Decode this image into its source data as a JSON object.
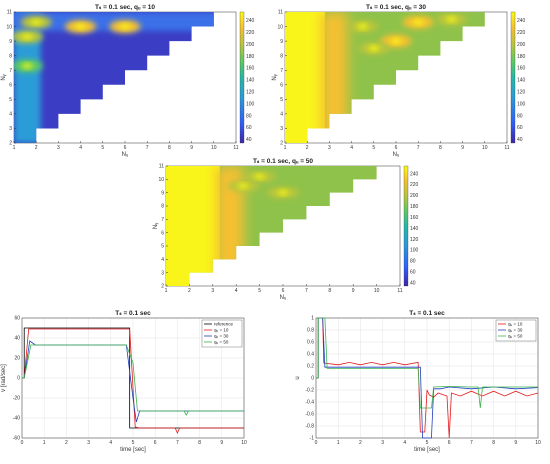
{
  "chart_data": [
    {
      "type": "heatmap",
      "title": "Tₛ = 0.1 sec, qᵤ = 10",
      "xlabel": "Nᵤ",
      "ylabel": "Nᵧ",
      "xticks": [
        "1",
        "2",
        "3",
        "4",
        "5",
        "6",
        "7",
        "8",
        "9",
        "10",
        "11"
      ],
      "yticks": [
        "2",
        "3",
        "4",
        "5",
        "6",
        "7",
        "8",
        "9",
        "10",
        "11"
      ],
      "colorbar_ticks": [
        "40",
        "60",
        "80",
        "100",
        "120",
        "140",
        "160",
        "180",
        "200",
        "220",
        "240"
      ],
      "colorscale": [
        "#3e26a8",
        "#2f5ef8",
        "#2b9cd7",
        "#23b9a5",
        "#5cc863",
        "#b8c43c",
        "#f5c030",
        "#f9fb0e"
      ],
      "hotspots": [
        {
          "nu": 4,
          "ny": 10,
          "value": 230
        },
        {
          "nu": 6,
          "ny": 10,
          "value": 220
        },
        {
          "nu": 2,
          "ny": 10.3,
          "value": 190
        },
        {
          "nu": 1.6,
          "ny": 9.3,
          "value": 200
        },
        {
          "nu": 1.6,
          "ny": 7.3,
          "value": 170
        }
      ]
    },
    {
      "type": "heatmap",
      "title": "Tₛ = 0.1 sec, qᵤ = 30",
      "xlabel": "Nᵤ",
      "ylabel": "Nᵧ",
      "xticks": [
        "1",
        "2",
        "3",
        "4",
        "5",
        "6",
        "7",
        "8",
        "9",
        "10",
        "11"
      ],
      "yticks": [
        "2",
        "3",
        "4",
        "5",
        "6",
        "7",
        "8",
        "9",
        "10",
        "11"
      ],
      "colorbar_ticks": [
        "40",
        "60",
        "80",
        "100",
        "120",
        "140",
        "160",
        "180",
        "200",
        "220",
        "240"
      ],
      "colorscale": [
        "#3e26a8",
        "#2f5ef8",
        "#2b9cd7",
        "#23b9a5",
        "#5cc863",
        "#b8c43c",
        "#f5c030",
        "#f9fb0e"
      ],
      "hotspots": [
        {
          "nu": 6,
          "ny": 9,
          "value": 215
        },
        {
          "nu": 7,
          "ny": 10.3,
          "value": 215
        },
        {
          "nu": 8.5,
          "ny": 10.5,
          "value": 210
        },
        {
          "nu": 4.5,
          "ny": 10,
          "value": 200
        },
        {
          "nu": 5,
          "ny": 8.5,
          "value": 200
        }
      ]
    },
    {
      "type": "heatmap",
      "title": "Tₛ = 0.1 sec, qᵤ = 50",
      "xlabel": "Nᵤ",
      "ylabel": "Nᵧ",
      "xticks": [
        "1",
        "2",
        "3",
        "4",
        "5",
        "6",
        "7",
        "8",
        "9",
        "10",
        "11"
      ],
      "yticks": [
        "2",
        "3",
        "4",
        "5",
        "6",
        "7",
        "8",
        "9",
        "10",
        "11"
      ],
      "colorbar_ticks": [
        "40",
        "60",
        "80",
        "100",
        "120",
        "140",
        "160",
        "180",
        "200",
        "220",
        "240"
      ],
      "colorscale": [
        "#3e26a8",
        "#2f5ef8",
        "#2b9cd7",
        "#23b9a5",
        "#5cc863",
        "#b8c43c",
        "#f5c030",
        "#f9fb0e"
      ],
      "hotspots": [
        {
          "nu": 5,
          "ny": 10.2,
          "value": 205
        },
        {
          "nu": 6,
          "ny": 9,
          "value": 200
        },
        {
          "nu": 4.3,
          "ny": 9.5,
          "value": 200
        }
      ]
    },
    {
      "type": "line",
      "title": "Tₛ = 0.1 sec",
      "xlabel": "time [sec]",
      "ylabel": "v [rad/sec]",
      "xlim": [
        0,
        10
      ],
      "ylim": [
        -60,
        60
      ],
      "xticks": [
        "0",
        "1",
        "2",
        "3",
        "4",
        "5",
        "6",
        "7",
        "8",
        "9",
        "10"
      ],
      "yticks": [
        "-60",
        "-40",
        "-20",
        "0",
        "20",
        "40",
        "60"
      ],
      "grid": true,
      "legend": "top-right",
      "series": [
        {
          "name": "reference",
          "color": "#000000",
          "x": [
            0,
            0.1,
            0.1,
            4.85,
            4.85,
            10
          ],
          "y": [
            0,
            0,
            50,
            50,
            -50,
            -50
          ]
        },
        {
          "name": "qᵤ = 10",
          "color": "#e41a1c",
          "x": [
            0,
            0.1,
            0.3,
            4.85,
            5.1,
            5.3,
            6.9,
            7.0,
            7.1,
            10
          ],
          "y": [
            0,
            0,
            49,
            49,
            -49,
            -50,
            -50,
            -55,
            -50,
            -50
          ]
        },
        {
          "name": "qᵤ = 30",
          "color": "#1f3fbf",
          "x": [
            0,
            0.1,
            0.35,
            0.6,
            4.7,
            5.0,
            5.15,
            5.3,
            10
          ],
          "y": [
            0,
            0,
            37,
            33,
            33,
            -20,
            -44,
            -33,
            -33
          ]
        },
        {
          "name": "qᵤ = 50",
          "color": "#3cb44b",
          "x": [
            0,
            0.1,
            0.4,
            4.7,
            5.0,
            5.2,
            5.4,
            7.3,
            7.4,
            7.5,
            10
          ],
          "y": [
            0,
            0,
            33,
            33,
            15,
            -33,
            -33,
            -33,
            -37,
            -33,
            -33
          ]
        }
      ]
    },
    {
      "type": "line",
      "title": "Tₛ = 0.1 sec",
      "xlabel": "time [sec]",
      "ylabel": "u",
      "xlim": [
        0,
        10
      ],
      "ylim": [
        -1,
        1
      ],
      "xticks": [
        "0",
        "1",
        "2",
        "3",
        "4",
        "5",
        "6",
        "7",
        "8",
        "9",
        "10"
      ],
      "yticks": [
        "-1",
        "-0.8",
        "-0.6",
        "-0.4",
        "-0.2",
        "0",
        "0.2",
        "0.4",
        "0.6",
        "0.8",
        "1"
      ],
      "grid": true,
      "legend": "top-right",
      "series": [
        {
          "name": "qᵤ = 10",
          "color": "#e41a1c",
          "x": [
            0,
            0.1,
            0.1,
            0.3,
            0.35,
            1.0,
            1.5,
            2.0,
            2.5,
            3.0,
            3.5,
            4.0,
            4.6,
            4.7,
            4.9,
            5.0,
            5.1,
            5.3,
            5.5,
            5.9,
            6.0,
            6.1,
            6.5,
            7.0,
            7.5,
            8.0,
            8.5,
            9.0,
            9.5,
            10
          ],
          "y": [
            0,
            0,
            1,
            1,
            0.25,
            0.22,
            0.26,
            0.22,
            0.26,
            0.22,
            0.26,
            0.22,
            0.26,
            -0.9,
            -0.9,
            -0.2,
            -0.28,
            -0.32,
            -0.25,
            -0.3,
            -1.0,
            -0.25,
            -0.3,
            -0.22,
            -0.3,
            -0.22,
            -0.3,
            -0.22,
            -0.3,
            -0.25
          ]
        },
        {
          "name": "qᵤ = 30",
          "color": "#1f3fbf",
          "x": [
            0,
            0.1,
            0.1,
            0.3,
            0.4,
            1,
            2,
            3,
            4,
            4.7,
            4.8,
            5.2,
            5.3,
            5.6,
            6,
            7,
            8,
            9,
            10
          ],
          "y": [
            0,
            0,
            1,
            1,
            0.18,
            0.18,
            0.18,
            0.18,
            0.18,
            0.18,
            -1.0,
            -1.0,
            -0.18,
            -0.18,
            -0.15,
            -0.18,
            -0.15,
            -0.18,
            -0.16
          ]
        },
        {
          "name": "qᵤ = 50",
          "color": "#3cb44b",
          "x": [
            0,
            0.1,
            0.1,
            0.4,
            0.5,
            1,
            2,
            3,
            4,
            4.6,
            4.7,
            5.2,
            5.3,
            6,
            7,
            7.3,
            7.4,
            7.5,
            8,
            9,
            10
          ],
          "y": [
            0,
            0,
            1,
            1,
            0.16,
            0.16,
            0.16,
            0.16,
            0.16,
            0.16,
            -0.5,
            -0.5,
            -0.15,
            -0.14,
            -0.15,
            -0.15,
            -0.5,
            -0.15,
            -0.15,
            -0.15,
            -0.15
          ]
        }
      ]
    }
  ]
}
